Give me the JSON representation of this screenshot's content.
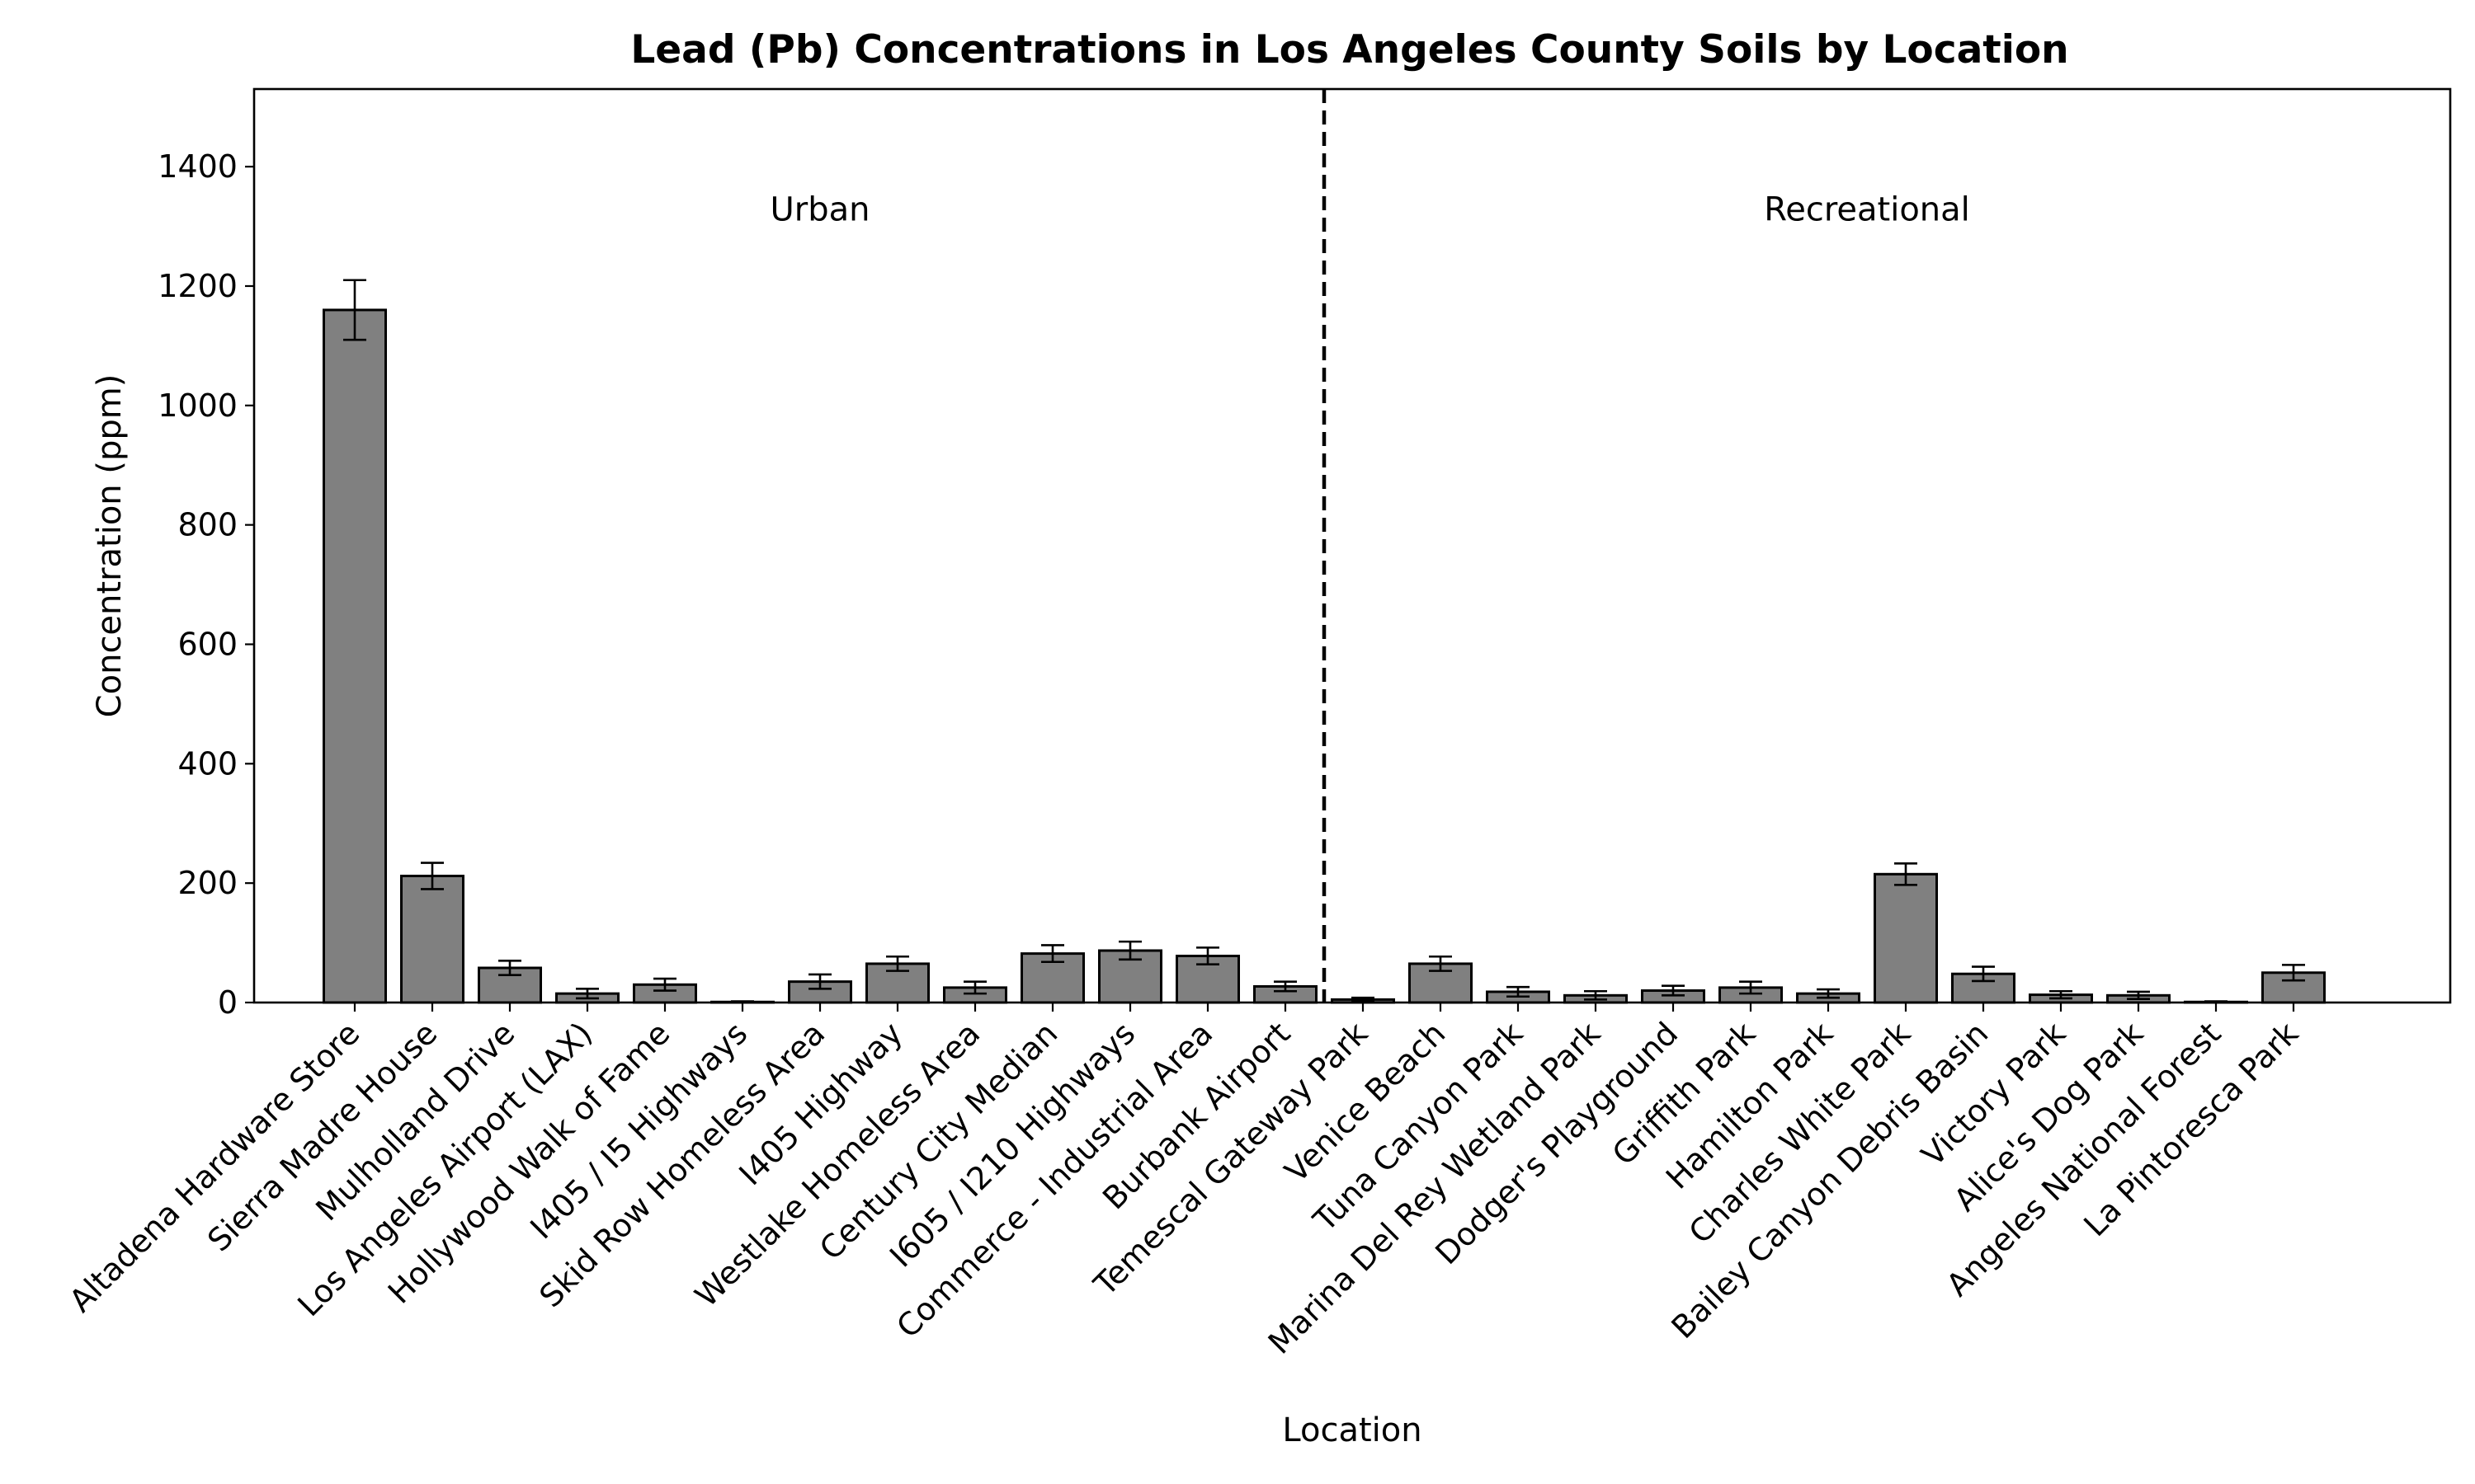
{
  "chart_data": {
    "type": "bar",
    "title": "Lead (Pb) Concentrations in Los Angeles County Soils by Location",
    "xlabel": "Location",
    "ylabel": "Concentration (ppm)",
    "ylim": [
      0,
      1530
    ],
    "yticks": [
      0,
      200,
      400,
      600,
      800,
      1000,
      1200,
      1400
    ],
    "ytick_labels": [
      "0",
      "200",
      "400",
      "600",
      "800",
      "1000",
      "1200",
      "1400"
    ],
    "grid": false,
    "bar_color": "#808080",
    "edge_color": "#000000",
    "categories": [
      "Altadena Hardware Store",
      "Sierra Madre House",
      "Mulholland Drive",
      "Los Angeles Airport (LAX)",
      "Hollywood Walk of Fame",
      "I405 / I5 Highways",
      "Skid Row Homeless Area",
      "I405 Highway",
      "Westlake Homeless Area",
      "Century City Median",
      "I605 / I210 Highways",
      "Commerce - Industrial Area",
      "Burbank Airport",
      "Temescal Gateway Park",
      "Venice Beach",
      "Tuna Canyon Park",
      "Marina Del Rey Wetland Park",
      "Dodger's Playground",
      "Griffith Park",
      "Hamilton Park",
      "Charles White Park",
      "Bailey Canyon Debris Basin",
      "Victory Park",
      "Alice's Dog Park",
      "Angeles National Forest",
      "La Pintoresca Park"
    ],
    "values": [
      1160,
      212,
      58,
      15,
      30,
      1,
      35,
      65,
      25,
      82,
      87,
      78,
      27,
      5,
      65,
      18,
      12,
      20,
      25,
      15,
      215,
      48,
      13,
      12,
      1,
      50
    ],
    "errors": [
      50,
      22,
      12,
      8,
      10,
      1,
      12,
      12,
      10,
      14,
      15,
      14,
      8,
      3,
      12,
      8,
      7,
      8,
      10,
      7,
      18,
      12,
      6,
      6,
      1,
      13
    ],
    "divider_after_index": 12,
    "annotations": [
      {
        "text": "Urban",
        "x": 6.0,
        "y": 1310
      },
      {
        "text": "Recreational",
        "x": 19.5,
        "y": 1310
      }
    ]
  }
}
